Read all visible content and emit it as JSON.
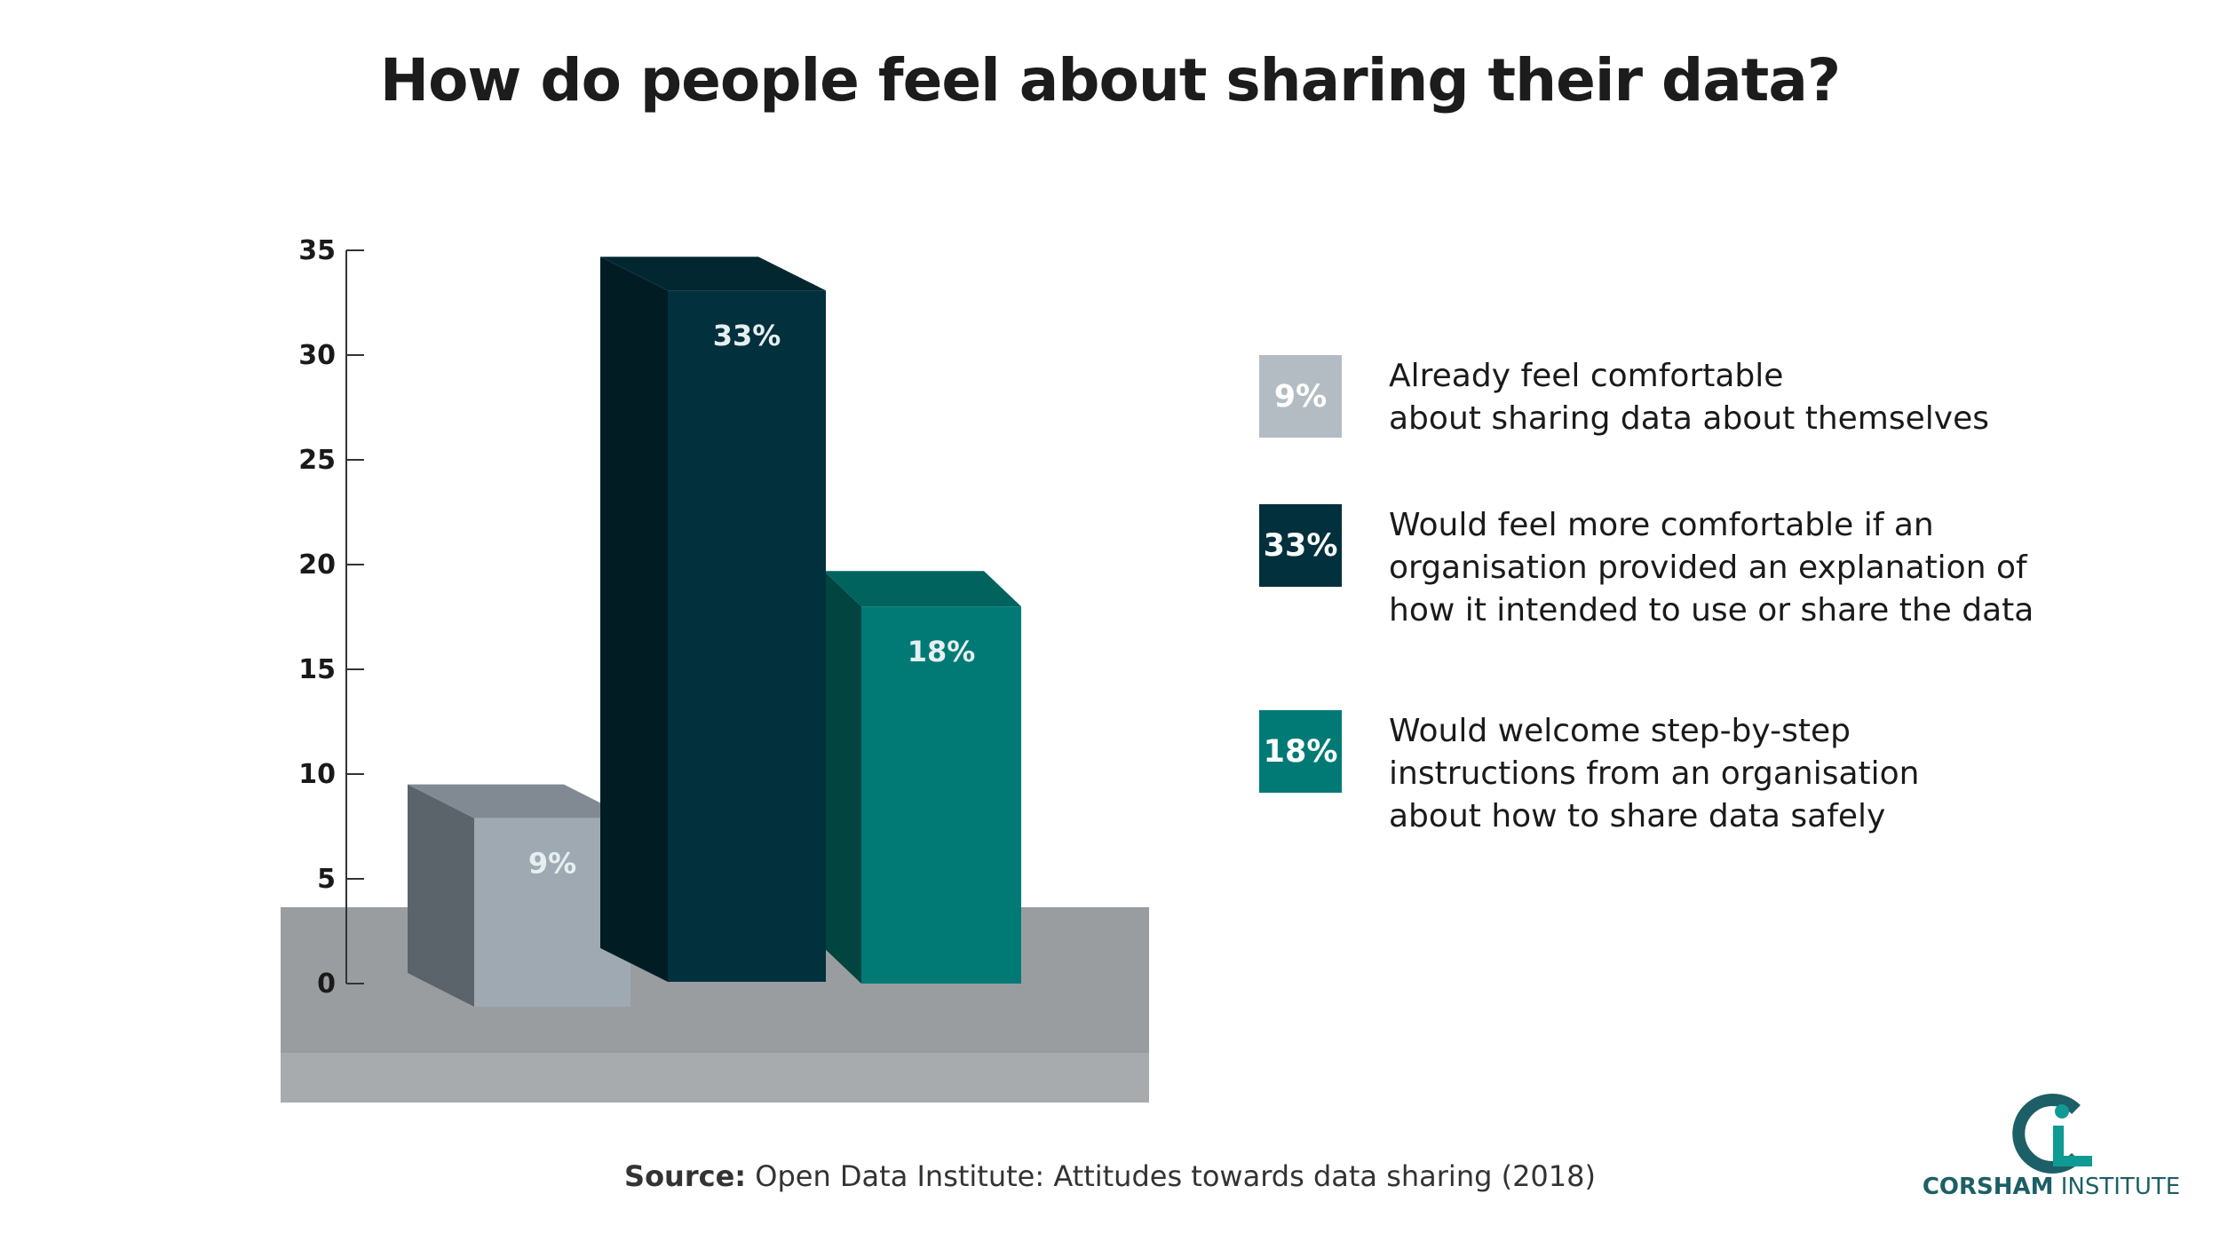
{
  "title": "How do people feel about sharing their data?",
  "chart_data": {
    "type": "bar",
    "title": "How do people feel about sharing their data?",
    "categories": [
      "Already feel comfortable about sharing data about themselves",
      "Would feel more comfortable if an organisation provided an explanation of how it intended to use or share the data",
      "Would welcome step-by-step instructions from an organisation about how to share data safely"
    ],
    "values": [
      9,
      33,
      18
    ],
    "value_labels": [
      "9%",
      "33%",
      "18%"
    ],
    "colors": [
      "#9fa9b1",
      "#02303d",
      "#017a76"
    ],
    "yticks": [
      "0",
      "5",
      "10",
      "15",
      "20",
      "25",
      "30",
      "35"
    ],
    "ylim": [
      0,
      35
    ],
    "xlabel": "",
    "ylabel": "",
    "grid": false,
    "legend_position": "right"
  },
  "legend": [
    {
      "swatch_label": "9%",
      "color": "#b3bcc3",
      "lines": [
        "Already feel comfortable",
        "about sharing data about themselves"
      ]
    },
    {
      "swatch_label": "33%",
      "color": "#02303d",
      "lines": [
        "Would feel more comfortable if an",
        "organisation provided an explanation of",
        "how it intended to use or share the data"
      ]
    },
    {
      "swatch_label": "18%",
      "color": "#017a76",
      "lines": [
        "Would welcome step-by-step",
        "instructions from an organisation",
        "about how to share data safely"
      ]
    }
  ],
  "source": {
    "label": "Source:",
    "text": "Open Data Institute: Attitudes towards data sharing (2018)"
  },
  "logo": {
    "name_bold": "CORSHAM",
    "name_rest": "INSTITUTE",
    "color": "#1d5f66",
    "accent": "#0f9a94"
  }
}
